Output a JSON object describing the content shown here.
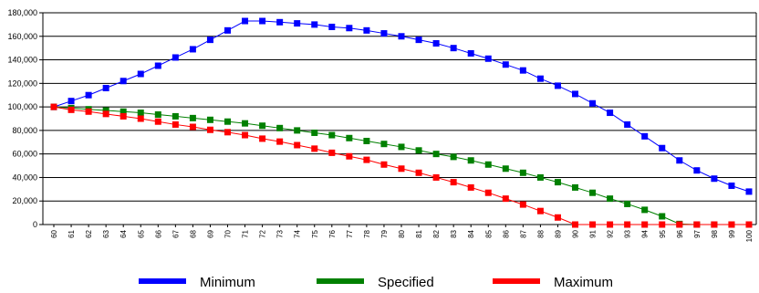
{
  "chart_data": {
    "type": "line",
    "title": "",
    "xlabel": "",
    "ylabel": "",
    "x": [
      60,
      61,
      62,
      63,
      64,
      65,
      66,
      67,
      68,
      69,
      70,
      71,
      72,
      73,
      74,
      75,
      76,
      77,
      78,
      79,
      80,
      81,
      82,
      83,
      84,
      85,
      86,
      87,
      88,
      89,
      90,
      91,
      92,
      93,
      94,
      95,
      96,
      97,
      98,
      99,
      100
    ],
    "ylim": [
      0,
      180000
    ],
    "yticks": [
      0,
      20000,
      40000,
      60000,
      80000,
      100000,
      120000,
      140000,
      160000,
      180000
    ],
    "ytick_labels": [
      "0",
      "20,000",
      "40,000",
      "60,000",
      "80,000",
      "100,000",
      "120,000",
      "140,000",
      "160,000",
      "180,000"
    ],
    "grid": "horizontal",
    "legend_position": "bottom",
    "series": [
      {
        "name": "Minimum",
        "color": "#0000ff",
        "values": [
          100000,
          105000,
          110000,
          116000,
          122000,
          128000,
          135000,
          142000,
          149000,
          157000,
          165000,
          173000,
          173000,
          172000,
          171000,
          170000,
          168000,
          167000,
          165000,
          162500,
          160000,
          157000,
          154000,
          150000,
          145500,
          141000,
          136000,
          131000,
          124000,
          118000,
          111000,
          103000,
          95000,
          85000,
          75000,
          65000,
          54500,
          46000,
          39000,
          33000,
          28000
        ]
      },
      {
        "name": "Specified",
        "color": "#008000",
        "values": [
          100000,
          99000,
          98000,
          97000,
          96000,
          95000,
          93500,
          92000,
          90500,
          89000,
          87500,
          86000,
          84000,
          82000,
          80000,
          78000,
          76000,
          73500,
          71000,
          68500,
          66000,
          63000,
          60000,
          57500,
          54500,
          51000,
          47500,
          44000,
          40000,
          36000,
          31500,
          27000,
          22000,
          17500,
          12500,
          7000,
          500,
          0,
          0,
          0,
          0
        ]
      },
      {
        "name": "Maximum",
        "color": "#ff0000",
        "values": [
          100000,
          97500,
          96000,
          94000,
          92000,
          90000,
          87500,
          85000,
          83000,
          80500,
          78500,
          76000,
          73000,
          70500,
          67500,
          64500,
          61000,
          58000,
          55000,
          51000,
          47500,
          44000,
          40000,
          36000,
          31500,
          27000,
          22000,
          17000,
          11500,
          6000,
          0,
          0,
          0,
          0,
          0,
          0,
          0,
          0,
          0,
          0,
          0
        ]
      }
    ]
  }
}
